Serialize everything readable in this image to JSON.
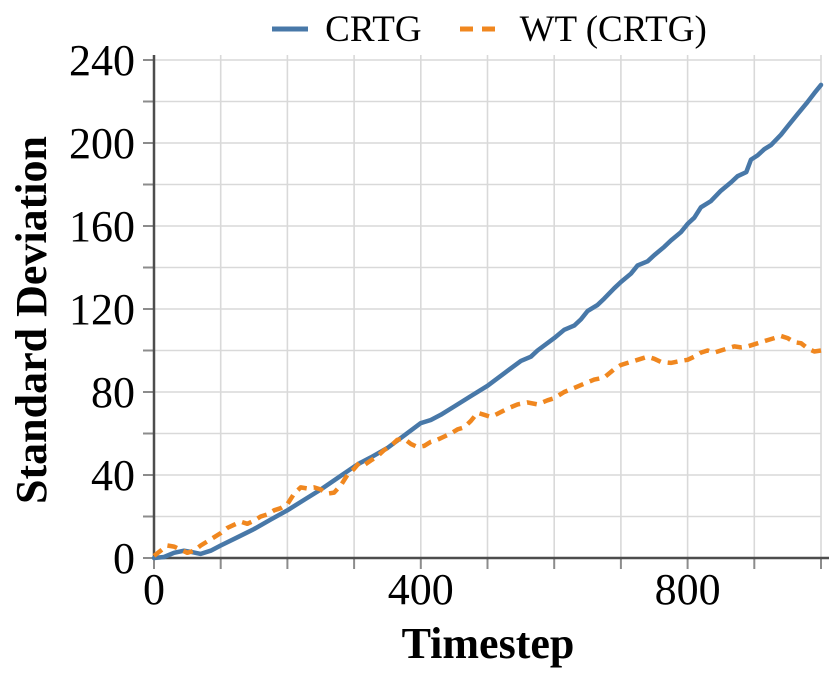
{
  "figure": {
    "background": "#ffffff"
  },
  "legend": {
    "entries": [
      {
        "label": "CRTG",
        "style": "solid"
      },
      {
        "label": "WT (CRTG)",
        "style": "dashed"
      }
    ]
  },
  "chart_data": {
    "type": "line",
    "title": "",
    "xlabel": "Timestep",
    "ylabel": "Standard Deviation",
    "xlim": [
      0,
      1000
    ],
    "ylim": [
      0,
      240
    ],
    "grid": {
      "enabled": true,
      "x_step": 100,
      "y_step": 20,
      "color": "#d9d9d9"
    },
    "axis_color": "#4d4d4d",
    "tick_color": "#8c8c8c",
    "legend_position": "top-center",
    "x_axis": {
      "major_ticks": [
        {
          "value": 0,
          "label": "0"
        },
        {
          "value": 400,
          "label": "400"
        },
        {
          "value": 800,
          "label": "800"
        }
      ],
      "minor_tick_step": 100
    },
    "y_axis": {
      "major_ticks": [
        {
          "value": 0,
          "label": "0"
        },
        {
          "value": 40,
          "label": "40"
        },
        {
          "value": 80,
          "label": "80"
        },
        {
          "value": 120,
          "label": "120"
        },
        {
          "value": 160,
          "label": "160"
        },
        {
          "value": 200,
          "label": "200"
        },
        {
          "value": 240,
          "label": "240"
        }
      ],
      "minor_tick_step": 20
    },
    "series": [
      {
        "name": "CRTG",
        "color": "#4878a8",
        "line_style": "solid",
        "points": [
          [
            0,
            0
          ],
          [
            15,
            0.5
          ],
          [
            30,
            2.5
          ],
          [
            45,
            3.5
          ],
          [
            55,
            3
          ],
          [
            70,
            2
          ],
          [
            85,
            3.5
          ],
          [
            100,
            6
          ],
          [
            125,
            10
          ],
          [
            150,
            14
          ],
          [
            175,
            18.5
          ],
          [
            200,
            23
          ],
          [
            225,
            28
          ],
          [
            250,
            33
          ],
          [
            275,
            38.5
          ],
          [
            300,
            44
          ],
          [
            310,
            46
          ],
          [
            325,
            48.5
          ],
          [
            350,
            53
          ],
          [
            375,
            59
          ],
          [
            400,
            65
          ],
          [
            415,
            66.5
          ],
          [
            430,
            69
          ],
          [
            450,
            73
          ],
          [
            475,
            78
          ],
          [
            500,
            83
          ],
          [
            525,
            89
          ],
          [
            550,
            95
          ],
          [
            565,
            97
          ],
          [
            575,
            100
          ],
          [
            600,
            106
          ],
          [
            615,
            110
          ],
          [
            630,
            112
          ],
          [
            640,
            115
          ],
          [
            650,
            119
          ],
          [
            665,
            122
          ],
          [
            675,
            125
          ],
          [
            690,
            130
          ],
          [
            700,
            133
          ],
          [
            715,
            137
          ],
          [
            725,
            141
          ],
          [
            740,
            143
          ],
          [
            750,
            146
          ],
          [
            765,
            150
          ],
          [
            775,
            153
          ],
          [
            790,
            157
          ],
          [
            800,
            161
          ],
          [
            810,
            164
          ],
          [
            820,
            169
          ],
          [
            835,
            172
          ],
          [
            850,
            177
          ],
          [
            865,
            181
          ],
          [
            875,
            184
          ],
          [
            888,
            186
          ],
          [
            895,
            192
          ],
          [
            905,
            194
          ],
          [
            915,
            197
          ],
          [
            925,
            199
          ],
          [
            940,
            204
          ],
          [
            950,
            208
          ],
          [
            965,
            214
          ],
          [
            978,
            219
          ],
          [
            990,
            224
          ],
          [
            1000,
            228
          ]
        ]
      },
      {
        "name": "WT (CRTG)",
        "color": "#f0871f",
        "line_style": "dashed",
        "points": [
          [
            0,
            1
          ],
          [
            10,
            3.5
          ],
          [
            20,
            6
          ],
          [
            30,
            5.5
          ],
          [
            40,
            4
          ],
          [
            50,
            2.5
          ],
          [
            60,
            3.5
          ],
          [
            70,
            6
          ],
          [
            80,
            8
          ],
          [
            90,
            10
          ],
          [
            100,
            12
          ],
          [
            110,
            14.5
          ],
          [
            120,
            16
          ],
          [
            130,
            17.5
          ],
          [
            140,
            16.5
          ],
          [
            150,
            18
          ],
          [
            160,
            20
          ],
          [
            170,
            21
          ],
          [
            180,
            23
          ],
          [
            190,
            24
          ],
          [
            200,
            26
          ],
          [
            210,
            31
          ],
          [
            220,
            34
          ],
          [
            230,
            33.5
          ],
          [
            240,
            34
          ],
          [
            250,
            33
          ],
          [
            260,
            31
          ],
          [
            270,
            31.5
          ],
          [
            280,
            35
          ],
          [
            290,
            40
          ],
          [
            300,
            43
          ],
          [
            308,
            46
          ],
          [
            316,
            45
          ],
          [
            325,
            47
          ],
          [
            335,
            49
          ],
          [
            345,
            52
          ],
          [
            355,
            54
          ],
          [
            365,
            57
          ],
          [
            375,
            57.5
          ],
          [
            385,
            55
          ],
          [
            395,
            53.5
          ],
          [
            405,
            54
          ],
          [
            415,
            56
          ],
          [
            425,
            57
          ],
          [
            435,
            58.5
          ],
          [
            445,
            60
          ],
          [
            455,
            62
          ],
          [
            465,
            63
          ],
          [
            475,
            66
          ],
          [
            485,
            70
          ],
          [
            495,
            69
          ],
          [
            505,
            68
          ],
          [
            515,
            69.5
          ],
          [
            530,
            72
          ],
          [
            545,
            74
          ],
          [
            560,
            75
          ],
          [
            575,
            74
          ],
          [
            590,
            76
          ],
          [
            600,
            77
          ],
          [
            615,
            80
          ],
          [
            630,
            82
          ],
          [
            645,
            84
          ],
          [
            660,
            86
          ],
          [
            675,
            87
          ],
          [
            690,
            91
          ],
          [
            700,
            93
          ],
          [
            710,
            94
          ],
          [
            720,
            95
          ],
          [
            730,
            96
          ],
          [
            740,
            97
          ],
          [
            750,
            96
          ],
          [
            760,
            94.5
          ],
          [
            775,
            94
          ],
          [
            790,
            95
          ],
          [
            800,
            95.5
          ],
          [
            810,
            97
          ],
          [
            820,
            99
          ],
          [
            830,
            100
          ],
          [
            840,
            99
          ],
          [
            850,
            100
          ],
          [
            860,
            101
          ],
          [
            870,
            102
          ],
          [
            880,
            101.5
          ],
          [
            890,
            102
          ],
          [
            900,
            103
          ],
          [
            910,
            104
          ],
          [
            920,
            105
          ],
          [
            930,
            106
          ],
          [
            940,
            107
          ],
          [
            950,
            106
          ],
          [
            960,
            104
          ],
          [
            970,
            103.5
          ],
          [
            980,
            101
          ],
          [
            990,
            99.5
          ],
          [
            1000,
            100
          ]
        ]
      }
    ]
  }
}
